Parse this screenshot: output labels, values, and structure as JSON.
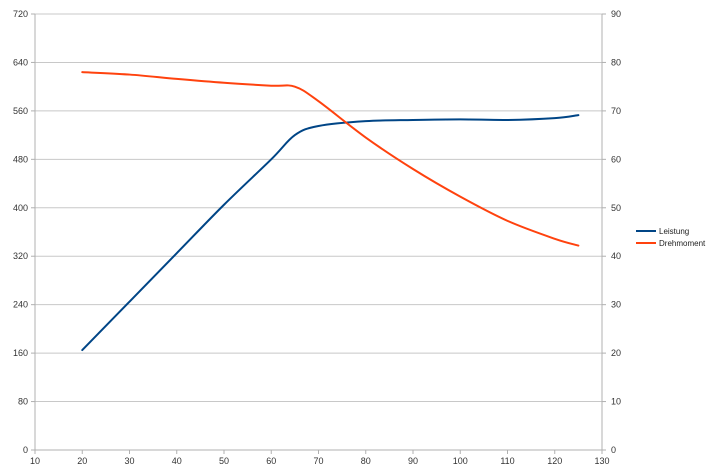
{
  "chart_data": {
    "type": "line",
    "title": "",
    "xlabel": "",
    "ylabel": "",
    "y2label": "",
    "xlim": [
      10,
      130
    ],
    "ylim": [
      0,
      720
    ],
    "y2lim": [
      0,
      90
    ],
    "x_ticks": [
      10,
      20,
      30,
      40,
      50,
      60,
      70,
      80,
      90,
      100,
      110,
      120,
      130
    ],
    "y_ticks": [
      0,
      80,
      160,
      240,
      320,
      400,
      480,
      560,
      640,
      720
    ],
    "y2_ticks": [
      0,
      10,
      20,
      30,
      40,
      50,
      60,
      70,
      80,
      90
    ],
    "grid": true,
    "legend_position": "right",
    "series": [
      {
        "name": "Leistung",
        "axis": "left",
        "color": "#004586",
        "x": [
          20,
          30,
          40,
          50,
          60,
          65,
          70,
          80,
          90,
          100,
          110,
          120,
          125
        ],
        "y": [
          165,
          245,
          325,
          405,
          480,
          520,
          535,
          543,
          545,
          546,
          545,
          548,
          553
        ]
      },
      {
        "name": "Drehmoment",
        "axis": "right",
        "color": "#ff420e",
        "x": [
          20,
          30,
          40,
          50,
          60,
          65,
          70,
          80,
          90,
          100,
          110,
          120,
          125
        ],
        "y": [
          78,
          77.5,
          76.6,
          75.8,
          75.2,
          75,
          72,
          64.5,
          58,
          52.3,
          47.3,
          43.6,
          42.2
        ]
      }
    ]
  }
}
